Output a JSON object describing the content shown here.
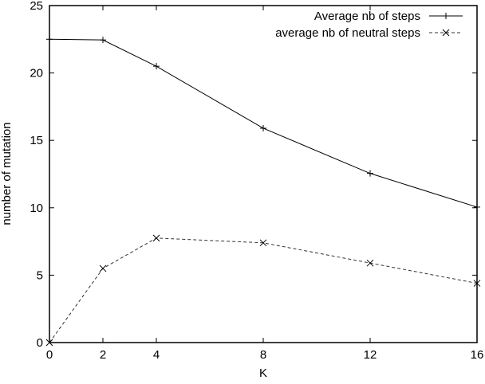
{
  "chart_data": {
    "type": "line",
    "title": "",
    "xlabel": "K",
    "ylabel": "number of mutation",
    "x": [
      0,
      2,
      4,
      8,
      12,
      16
    ],
    "xlim": [
      0,
      16
    ],
    "ylim": [
      0,
      25
    ],
    "xticks": [
      "0",
      "2",
      "4",
      "8",
      "12",
      "16"
    ],
    "yticks": [
      "0",
      "5",
      "10",
      "15",
      "20",
      "25"
    ],
    "grid": false,
    "legend_position": "top-right",
    "series": [
      {
        "name": "Average nb of steps",
        "style": "solid",
        "marker": "+",
        "values": [
          22.5,
          22.45,
          20.5,
          15.9,
          12.55,
          10.05
        ]
      },
      {
        "name": "average nb of neutral steps",
        "style": "dashed",
        "marker": "x",
        "values": [
          0.0,
          5.5,
          7.75,
          7.4,
          5.9,
          4.4
        ]
      }
    ]
  }
}
